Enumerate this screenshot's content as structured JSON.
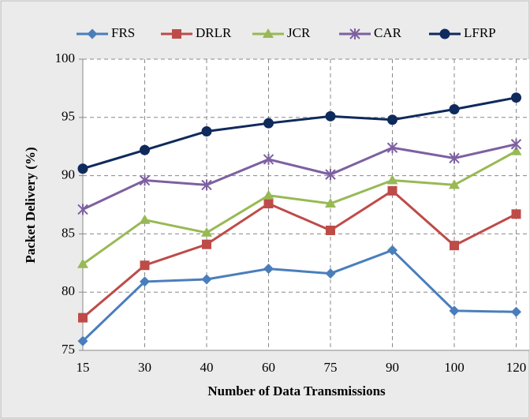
{
  "chart_data": {
    "type": "line",
    "y_label": "Packet Delivery (%)",
    "x_label": "Number of Data Transmissions",
    "categories": [
      "15",
      "30",
      "40",
      "60",
      "75",
      "90",
      "100",
      "120"
    ],
    "ylim": [
      75,
      100
    ],
    "yticks": [
      75,
      80,
      85,
      90,
      95,
      100
    ],
    "grid": true,
    "legend": "top",
    "series": [
      {
        "name": "FRS",
        "color": "#4a7ebb",
        "marker": "diamond",
        "values": [
          75.8,
          80.9,
          81.1,
          82.0,
          81.6,
          83.6,
          78.4,
          78.3
        ]
      },
      {
        "name": "DRLR",
        "color": "#be4b48",
        "marker": "square",
        "values": [
          77.8,
          82.3,
          84.1,
          87.6,
          85.3,
          88.7,
          84.0,
          86.7
        ]
      },
      {
        "name": "JCR",
        "color": "#98b954",
        "marker": "triangle",
        "values": [
          82.4,
          86.2,
          85.1,
          88.3,
          87.6,
          89.6,
          89.2,
          92.1
        ]
      },
      {
        "name": "CAR",
        "color": "#7d60a0",
        "marker": "asterisk",
        "values": [
          87.1,
          89.6,
          89.2,
          91.4,
          90.1,
          92.4,
          91.5,
          92.7
        ]
      },
      {
        "name": "LFRP",
        "color": "#0f2a5c",
        "marker": "circle",
        "values": [
          90.6,
          92.2,
          93.8,
          94.5,
          95.1,
          94.8,
          95.7,
          96.7
        ]
      }
    ]
  }
}
